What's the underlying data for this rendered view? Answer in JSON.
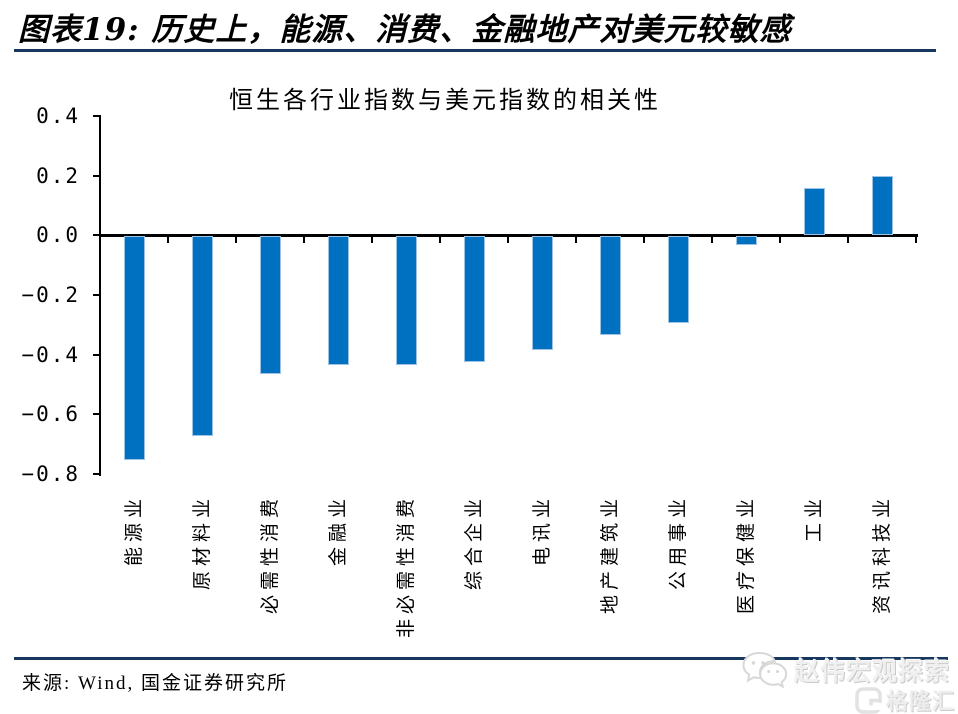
{
  "header": {
    "title": "图表19: 历史上，能源、消费、金融地产对美元较敏感"
  },
  "chart_data": {
    "type": "bar",
    "title": "恒生各行业指数与美元指数的相关性",
    "categories": [
      "能源业",
      "原材料业",
      "必需性消费",
      "金融业",
      "非必需性消费",
      "综合企业",
      "电讯业",
      "地产建筑业",
      "公用事业",
      "医疗保健业",
      "工业",
      "资讯科技业"
    ],
    "values": [
      -0.75,
      -0.67,
      -0.46,
      -0.43,
      -0.43,
      -0.42,
      -0.38,
      -0.33,
      -0.29,
      -0.03,
      0.16,
      0.2
    ],
    "ylim": [
      -0.8,
      0.4
    ],
    "yticks": [
      {
        "value": 0.4,
        "label": "0.4"
      },
      {
        "value": 0.2,
        "label": "0.2"
      },
      {
        "value": 0.0,
        "label": "0.0"
      },
      {
        "value": -0.2,
        "label": "−0.2"
      },
      {
        "value": -0.4,
        "label": "−0.4"
      },
      {
        "value": -0.6,
        "label": "−0.6"
      },
      {
        "value": -0.8,
        "label": "−0.8"
      }
    ],
    "grid": false,
    "legend": null,
    "bar_color": "#0070C0",
    "bar_border_color": "#9DC3E6",
    "axis_color": "#000000"
  },
  "footer": {
    "source": "来源: Wind, 国金证券研究所"
  },
  "watermark": {
    "wechat_brand": "赵伟宏观探索",
    "gelonghui": "格隆汇",
    "color": "#e3e3e3"
  },
  "colors": {
    "divider": "#17375E"
  }
}
